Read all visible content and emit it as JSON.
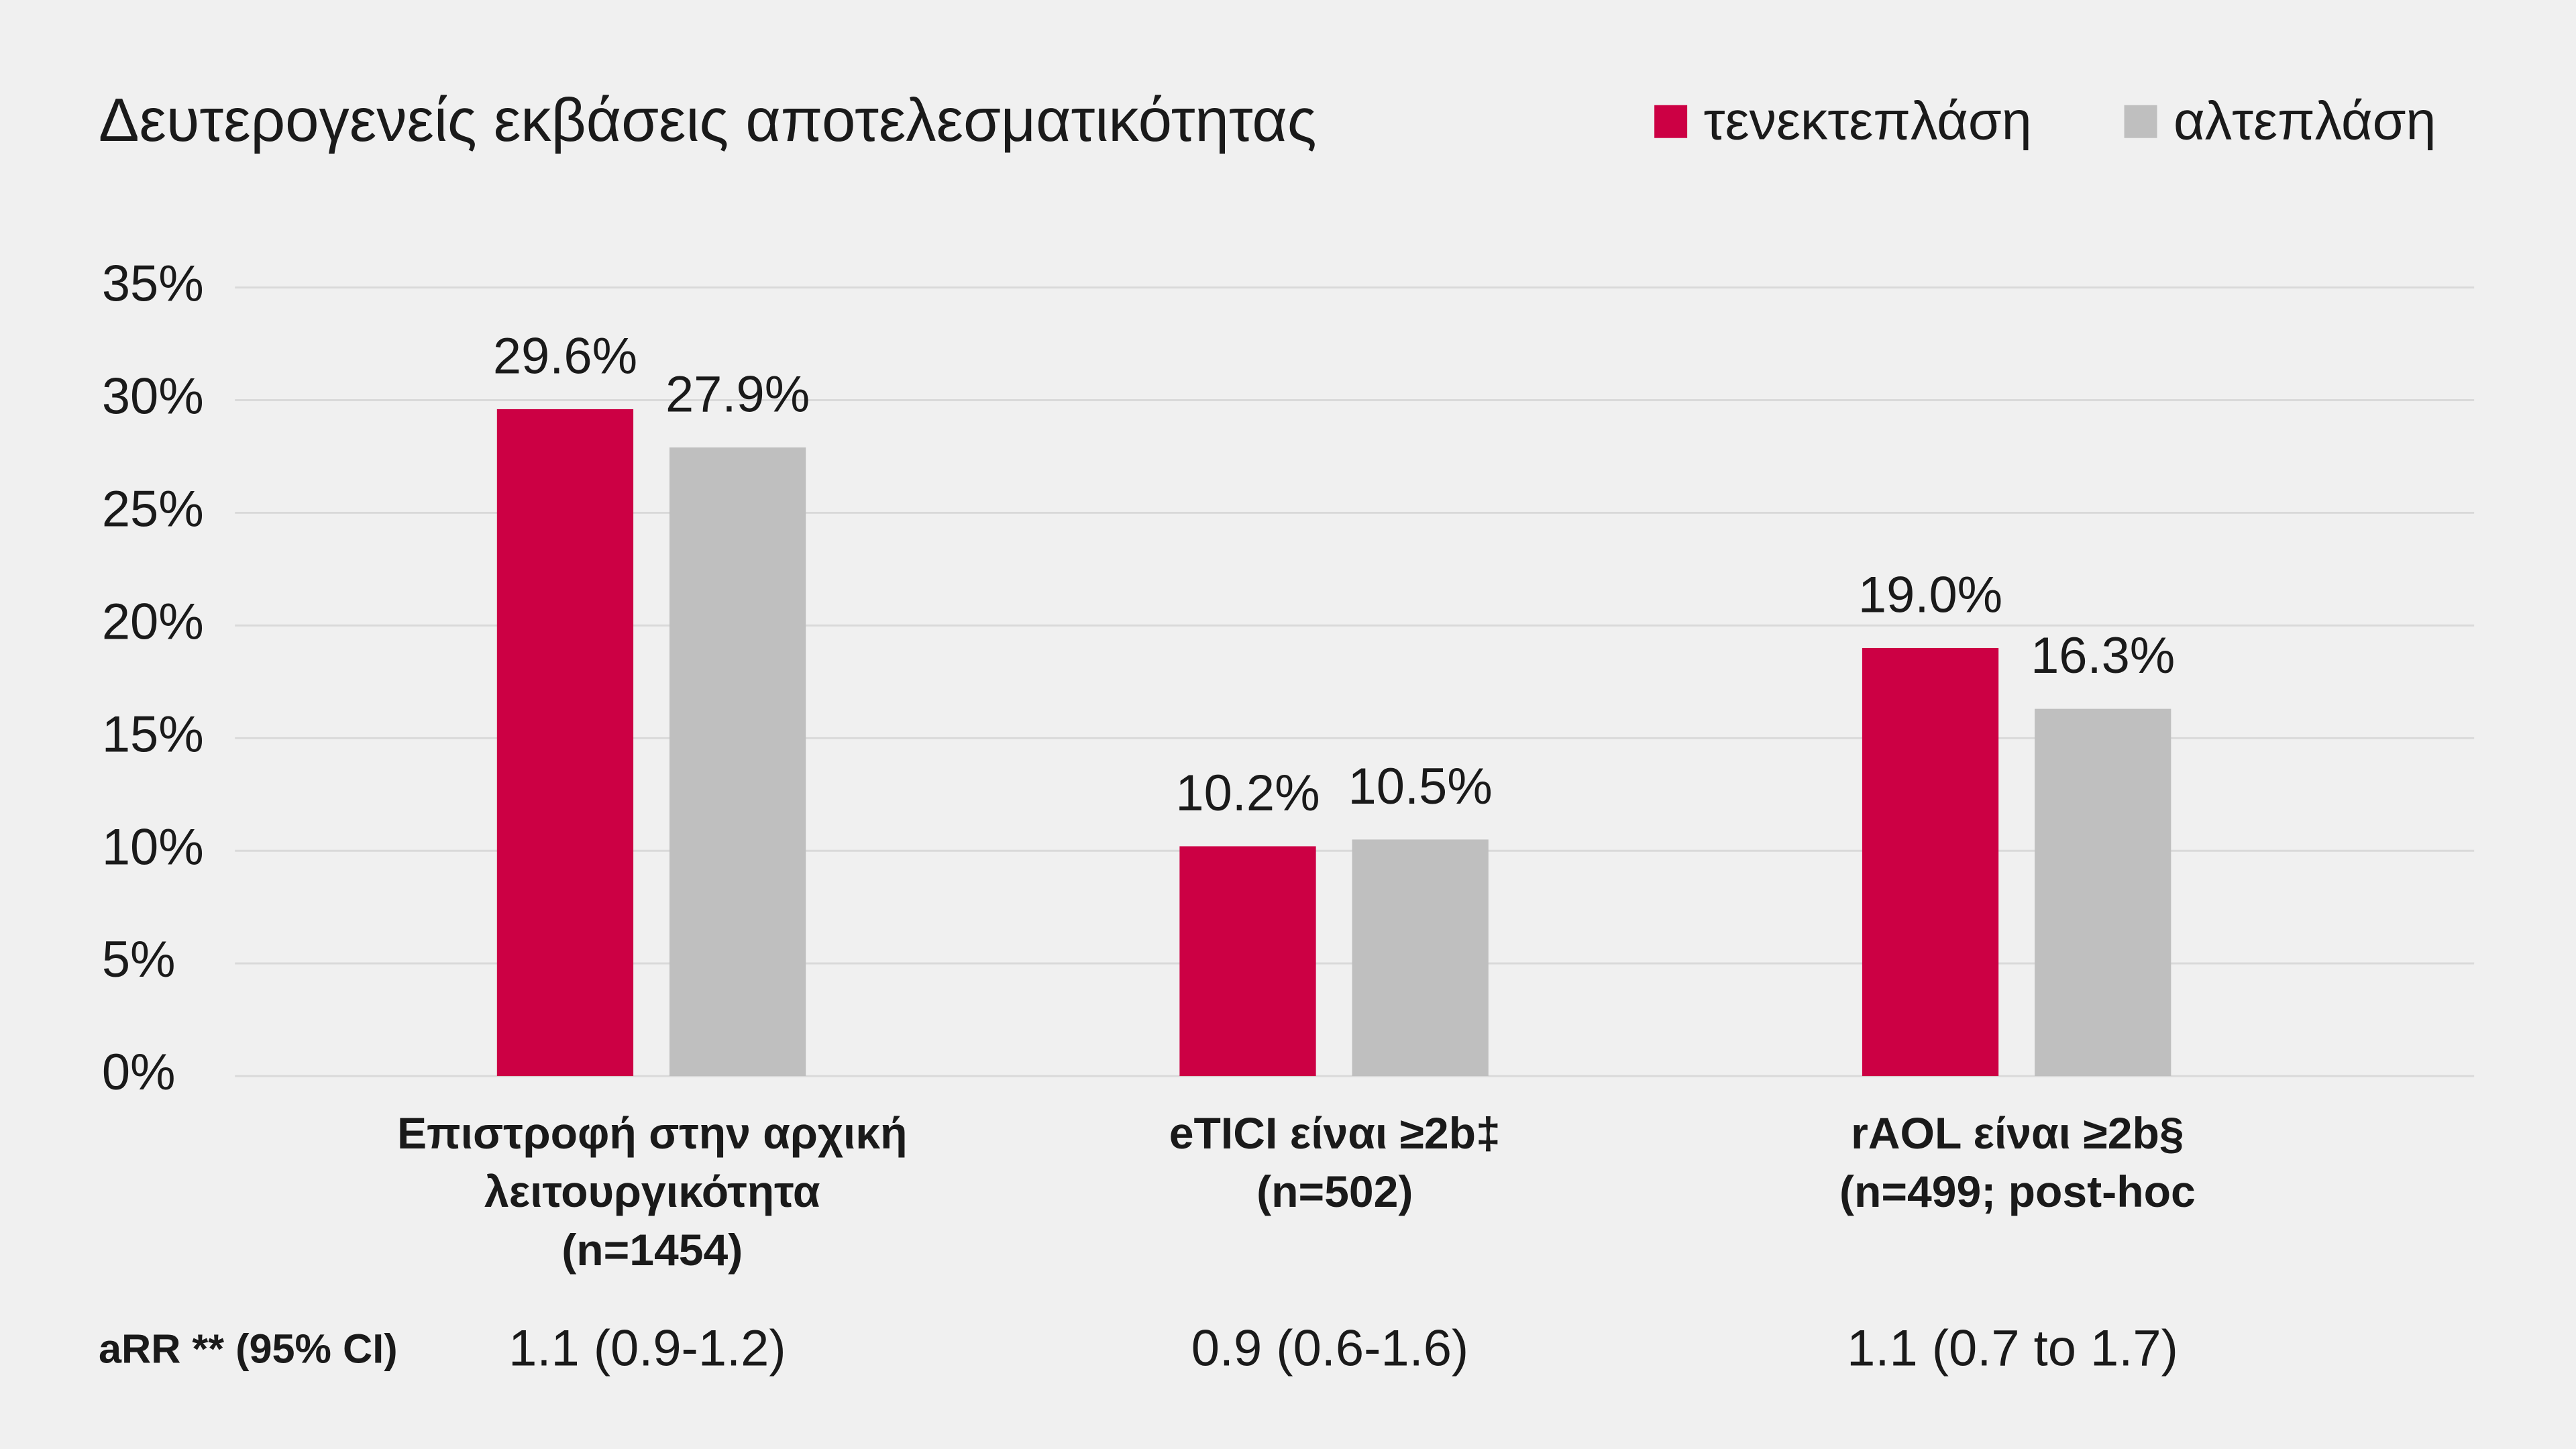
{
  "chart_data": {
    "type": "bar",
    "title": "Δευτερογενείς εκβάσεις αποτελεσματικότητας",
    "categories": [
      [
        "Επιστροφή στην αρχική",
        "λειτουργικότητα",
        "(n=1454)"
      ],
      [
        "eTICI είναι ≥2b‡",
        "(n=502)"
      ],
      [
        "rAOL είναι ≥2b§",
        "(n=499; post-hoc"
      ]
    ],
    "series": [
      {
        "name": "τενεκτεπλάση",
        "color": "#cc0044",
        "values": [
          29.6,
          10.2,
          19.0
        ],
        "value_labels": [
          "29.6%",
          "10.2%",
          "19.0%"
        ]
      },
      {
        "name": "αλτεπλάση",
        "color": "#bfbfbf",
        "values": [
          27.9,
          10.5,
          16.3
        ],
        "value_labels": [
          "27.9%",
          "10.5%",
          "16.3%"
        ]
      }
    ],
    "ylim": [
      0,
      35
    ],
    "yticks": [
      {
        "value": 0,
        "label": "0%"
      },
      {
        "value": 5,
        "label": "5%"
      },
      {
        "value": 10,
        "label": "10%"
      },
      {
        "value": 15,
        "label": "15%"
      },
      {
        "value": 20,
        "label": "20%"
      },
      {
        "value": 25,
        "label": "25%"
      },
      {
        "value": 30,
        "label": "30%"
      },
      {
        "value": 35,
        "label": "35%"
      }
    ],
    "grid": true,
    "legend": "top-right",
    "arr_label": "aRR ** (95% CI)",
    "arr_values": [
      "1.1 (0.9-1.2)",
      "0.9 (0.6-1.6)",
      "1.1 (0.7 to 1.7)"
    ]
  }
}
